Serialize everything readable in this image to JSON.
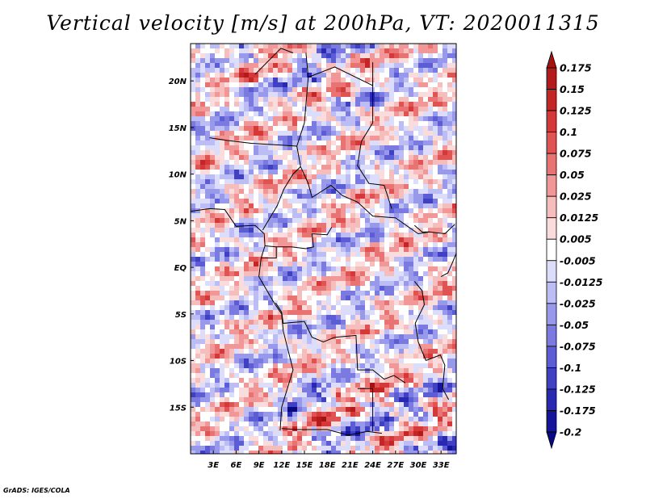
{
  "title": "Vertical velocity [m/s] at 200hPa, VT: 2020011315",
  "credit": "GrADS: IGES/COLA",
  "colors": {
    "positive": "#d7301f",
    "negative": "#3a3fc4",
    "border": "#000000"
  },
  "chart_data": {
    "type": "heatmap",
    "title": "Vertical velocity [m/s] at 200hPa, VT: 2020011315",
    "variable": "Vertical velocity",
    "units": "m/s",
    "level": "200hPa",
    "valid_time": "2020011315",
    "x_range": [
      0,
      35
    ],
    "y_range": [
      -20,
      24
    ],
    "x_ticks": [
      {
        "value": 3,
        "label": "3E"
      },
      {
        "value": 6,
        "label": "6E"
      },
      {
        "value": 9,
        "label": "9E"
      },
      {
        "value": 12,
        "label": "12E"
      },
      {
        "value": 15,
        "label": "15E"
      },
      {
        "value": 18,
        "label": "18E"
      },
      {
        "value": 21,
        "label": "21E"
      },
      {
        "value": 24,
        "label": "24E"
      },
      {
        "value": 27,
        "label": "27E"
      },
      {
        "value": 30,
        "label": "30E"
      },
      {
        "value": 33,
        "label": "33E"
      }
    ],
    "y_ticks": [
      {
        "value": 20,
        "label": "20N"
      },
      {
        "value": 15,
        "label": "15N"
      },
      {
        "value": 10,
        "label": "10N"
      },
      {
        "value": 5,
        "label": "5N"
      },
      {
        "value": 0,
        "label": "EQ"
      },
      {
        "value": -5,
        "label": "5S"
      },
      {
        "value": -10,
        "label": "10S"
      },
      {
        "value": -15,
        "label": "15S"
      }
    ],
    "colorbar": {
      "orientation": "vertical",
      "extend": "both",
      "labels": [
        "0.175",
        "0.15",
        "0.125",
        "0.1",
        "0.075",
        "0.05",
        "0.025",
        "0.0125",
        "0.005",
        "-0.005",
        "-0.0125",
        "-0.025",
        "-0.05",
        "-0.075",
        "-0.1",
        "-0.125",
        "-0.175",
        "-0.2"
      ],
      "colors": [
        "#a51212",
        "#b51a1a",
        "#c42525",
        "#d53838",
        "#e05353",
        "#e97272",
        "#f19797",
        "#f6bdbd",
        "#fbdcdc",
        "#ffffff",
        "#dcdcfb",
        "#bdbdf5",
        "#9999ec",
        "#7a7ae1",
        "#5c5cd4",
        "#4040c2",
        "#2828b0",
        "#15159c",
        "#0a0a80"
      ]
    }
  }
}
